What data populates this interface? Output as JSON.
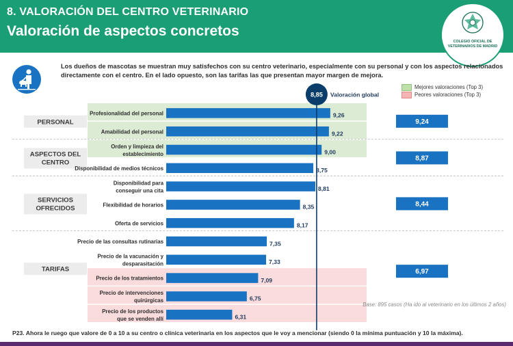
{
  "header": {
    "section": "8. VALORACIÓN DEL CENTRO VETERINARIO",
    "title": "Valoración de aspectos concretos",
    "logo_text": "COLEGIO OFICIAL DE VETERINARIOS DE MADRID"
  },
  "intro": "Los dueños de mascotas se muestran muy satisfechos con su centro veterinario, especialmente con su personal y con los aspectos relacionados directamente con el centro. En el lado opuesto, son las tarifas las que presentan mayor margen de mejora.",
  "legend": {
    "best": "Mejores valoraciones (Top 3)",
    "worst": "Peores valoraciones (Top 3)"
  },
  "colors": {
    "header": "#1a9e75",
    "bar": "#1a73c2",
    "best_bg": "#dcebd3",
    "worst_bg": "#fbdcdc",
    "global_line": "#0b3d6b",
    "summary_box": "#1a73c2"
  },
  "note": "Base: 895 casos (Ha ido al veterinario en los últimos 2 años)",
  "question": "P23. Ahora le ruego que valore de 0 a 10 a su centro o clínica veterinaria en los aspectos que le voy a mencionar (siendo 0 la mínima puntuación y 10 la máxima).",
  "chart_data": {
    "type": "bar",
    "orientation": "horizontal",
    "global": {
      "label": "Valoración global",
      "value_label": "8,85",
      "value": 8.85
    },
    "groups": [
      {
        "name": "PERSONAL",
        "summary": "9,24",
        "summary_value": 9.24,
        "items": [
          {
            "label": "Profesionalidad del personal",
            "value": 9.26,
            "value_label": "9,26",
            "highlight": "best"
          },
          {
            "label": "Amabilidad del personal",
            "value": 9.22,
            "value_label": "9,22",
            "highlight": "best"
          }
        ]
      },
      {
        "name": "ASPECTOS DEL CENTRO",
        "summary": "8,87",
        "summary_value": 8.87,
        "items": [
          {
            "label": "Orden y limpieza del establecimiento",
            "value": 9.0,
            "value_label": "9,00",
            "highlight": "best"
          },
          {
            "label": "Disponibilidad de medios técnicos",
            "value": 8.75,
            "value_label": "8,75",
            "highlight": ""
          }
        ]
      },
      {
        "name": "SERVICIOS OFRECIDOS",
        "summary": "8,44",
        "summary_value": 8.44,
        "items": [
          {
            "label": "Disponibilidad para conseguir una cita",
            "value": 8.81,
            "value_label": "8,81",
            "highlight": ""
          },
          {
            "label": "Flexibilidad de horarios",
            "value": 8.35,
            "value_label": "8,35",
            "highlight": ""
          },
          {
            "label": "Oferta de servicios",
            "value": 8.17,
            "value_label": "8,17",
            "highlight": ""
          }
        ]
      },
      {
        "name": "TARIFAS",
        "summary": "6,97",
        "summary_value": 6.97,
        "items": [
          {
            "label": "Precio de las consultas rutinarias",
            "value": 7.35,
            "value_label": "7,35",
            "highlight": ""
          },
          {
            "label": "Precio de la vacunación y desparasitación",
            "value": 7.33,
            "value_label": "7,33",
            "highlight": ""
          },
          {
            "label": "Precio de los tratamientos",
            "value": 7.09,
            "value_label": "7,09",
            "highlight": "worst"
          },
          {
            "label": "Precio de intervenciones quirúrgicas",
            "value": 6.75,
            "value_label": "6,75",
            "highlight": "worst"
          },
          {
            "label": "Precio de los productos que se venden allí",
            "value": 6.31,
            "value_label": "6,31",
            "highlight": "worst"
          }
        ]
      }
    ]
  }
}
